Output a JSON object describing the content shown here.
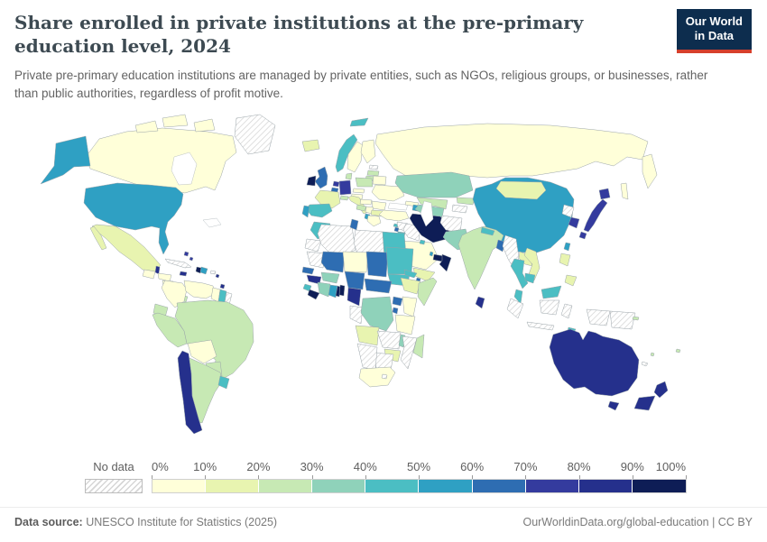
{
  "header": {
    "title": "Share enrolled in private institutions at the pre-primary education level, 2024",
    "logo": {
      "line1": "Our World",
      "line2": "in Data"
    }
  },
  "subtitle": "Private pre-primary education institutions are managed by private entities, such as NGOs, religious groups, or businesses, rather than public authorities, regardless of profit motive.",
  "footer": {
    "datasource_label": "Data source:",
    "datasource_value": " UNESCO Institute for Statistics (2025)",
    "link": "OurWorldinData.org/global-education | CC BY"
  },
  "chart_data": {
    "type": "choropleth_map",
    "title": "Share enrolled in private institutions at the pre-primary education level, 2024",
    "year": "2024",
    "unit": "% enrolled in private pre-primary institutions",
    "legend": {
      "no_data_label": "No data",
      "tick_labels": [
        "0%",
        "10%",
        "20%",
        "30%",
        "40%",
        "50%",
        "60%",
        "70%",
        "80%",
        "90%",
        "100%"
      ],
      "bin_labels": [
        "0-10%",
        "10-20%",
        "20-30%",
        "30-40%",
        "40-50%",
        "50-60%",
        "60-70%",
        "70-80%",
        "80-90%",
        "90-100%"
      ],
      "colors": [
        "#ffffd9",
        "#e8f4b0",
        "#c7e9b4",
        "#8fd2ba",
        "#4bbec3",
        "#2fa0c3",
        "#2e6db2",
        "#343b9e",
        "#25308c",
        "#0e1d56"
      ],
      "no_data_fill": "white with gray diagonal hatching"
    },
    "countries": {
      "Canada": "0-10%",
      "United States": "50-60%",
      "Mexico": "10-20%",
      "Guatemala": "0-10%",
      "Belize": "80-90%",
      "Honduras": "0-10%",
      "Nicaragua": "0-10%",
      "Costa Rica": "20-30%",
      "Panama": "20-30%",
      "Cuba": "No data",
      "Jamaica": "80-90%",
      "Haiti": "90-100%",
      "Dominican Republic": "50-60%",
      "Puerto Rico": "No data",
      "Bahamas": "70-80%",
      "Barbados": "80-90%",
      "Trinidad and Tobago": "80-90%",
      "Greenland": "No data",
      "Colombia": "0-10%",
      "Venezuela": "0-10%",
      "Guyana": "0-10%",
      "Suriname": "40-50%",
      "French Guiana": "No data",
      "Ecuador": "20-30%",
      "Peru": "20-30%",
      "Brazil": "20-30%",
      "Bolivia": "0-10%",
      "Paraguay": "20-30%",
      "Chile": "80-90%",
      "Argentina": "20-30%",
      "Uruguay": "40-50%",
      "Iceland": "10-20%",
      "Norway": "40-50%",
      "Sweden": "0-10%",
      "Finland": "0-10%",
      "Denmark": "20-30%",
      "Estonia": "No data",
      "Latvia": "20-30%",
      "Lithuania": "20-30%",
      "United Kingdom": "60-70%",
      "Ireland": "90-100%",
      "Netherlands": "70-80%",
      "Belgium": "60-70%",
      "Germany": "70-80%",
      "France": "10-20%",
      "Spain": "40-50%",
      "Portugal": "50-60%",
      "Italy": "10-20%",
      "Switzerland": "20-30%",
      "Austria": "0-10%",
      "Czechia": "0-10%",
      "Poland": "20-30%",
      "Belarus": "0-10%",
      "Ukraine": "0-10%",
      "Hungary": "0-10%",
      "Romania": "0-10%",
      "Croatia": "20-30%",
      "Serbia": "0-10%",
      "Bulgaria": "10-20%",
      "Albania": "50-60%",
      "Greece": "0-10%",
      "Russia": "0-10%",
      "Turkey": "0-10%",
      "Georgia": "0-10%",
      "Azerbaijan": "50-60%",
      "Cyprus": "40-50%",
      "Syria": "No data",
      "Lebanon": "60-70%",
      "Israel": "70-80%",
      "Jordan": "40-50%",
      "Iraq": "No data",
      "Saudi Arabia": "0-10%",
      "Kuwait": "40-50%",
      "Qatar": "50-60%",
      "United Arab Emirates": "90-100%",
      "Oman": "90-100%",
      "Yemen": "10-20%",
      "Iran": "90-100%",
      "Afghanistan": "No data",
      "Pakistan": "30-40%",
      "Turkmenistan": "30-40%",
      "Uzbekistan": "20-30%",
      "Kazakhstan": "30-40%",
      "Kyrgyzstan": "20-30%",
      "Tajikistan": "No data",
      "India": "20-30%",
      "Nepal": "40-50%",
      "Bangladesh": "60-70%",
      "Sri Lanka": "80-90%",
      "Myanmar": "No data",
      "Thailand": "40-50%",
      "Laos": "10-20%",
      "Vietnam": "10-20%",
      "Cambodia": "40-50%",
      "Malaysia": "40-50%",
      "China": "50-60%",
      "Mongolia": "10-20%",
      "North Korea": "No data",
      "South Korea": "70-80%",
      "Japan": "70-80%",
      "Taiwan": "50-60%",
      "Philippines": "10-20%",
      "Indonesia": "No data",
      "Timor-Leste": "40-50%",
      "Papua New Guinea": "No data",
      "Australia": "80-90%",
      "New Zealand": "80-90%",
      "Fiji": "20-30%",
      "Vanuatu": "20-30%",
      "Solomon Islands": "20-30%",
      "New Caledonia": "No data",
      "Morocco": "40-50%",
      "Western Sahara": "No data",
      "Algeria": "No data",
      "Tunisia": "60-70%",
      "Libya": "No data",
      "Egypt": "40-50%",
      "Mauritania": "No data",
      "Mali": "60-70%",
      "Niger": "0-10%",
      "Chad": "60-70%",
      "Sudan": "40-50%",
      "South Sudan": "40-50%",
      "Eritrea": "40-50%",
      "Djibouti": "60-70%",
      "Ethiopia": "10-20%",
      "Somalia": "20-30%",
      "Senegal": "60-70%",
      "Guinea": "80-90%",
      "Sierra Leone": "40-50%",
      "Liberia": "90-100%",
      "Cote d'Ivoire": "30-40%",
      "Ghana": "50-60%",
      "Togo": "90-100%",
      "Benin": "90-100%",
      "Burkina Faso": "30-40%",
      "Nigeria": "60-70%",
      "Cameroon": "80-90%",
      "Central African Republic": "60-70%",
      "Gabon": "No data",
      "DR Congo": "30-40%",
      "Uganda": "60-70%",
      "Kenya": "0-10%",
      "Rwanda": "60-70%",
      "Tanzania": "0-10%",
      "Angola": "10-20%",
      "Zambia": "No data",
      "Malawi": "30-40%",
      "Mozambique": "No data",
      "Zimbabwe": "10-20%",
      "Botswana": "No data",
      "Namibia": "No data",
      "South Africa": "0-10%",
      "Lesotho": "No data",
      "Madagascar": "20-30%"
    }
  }
}
